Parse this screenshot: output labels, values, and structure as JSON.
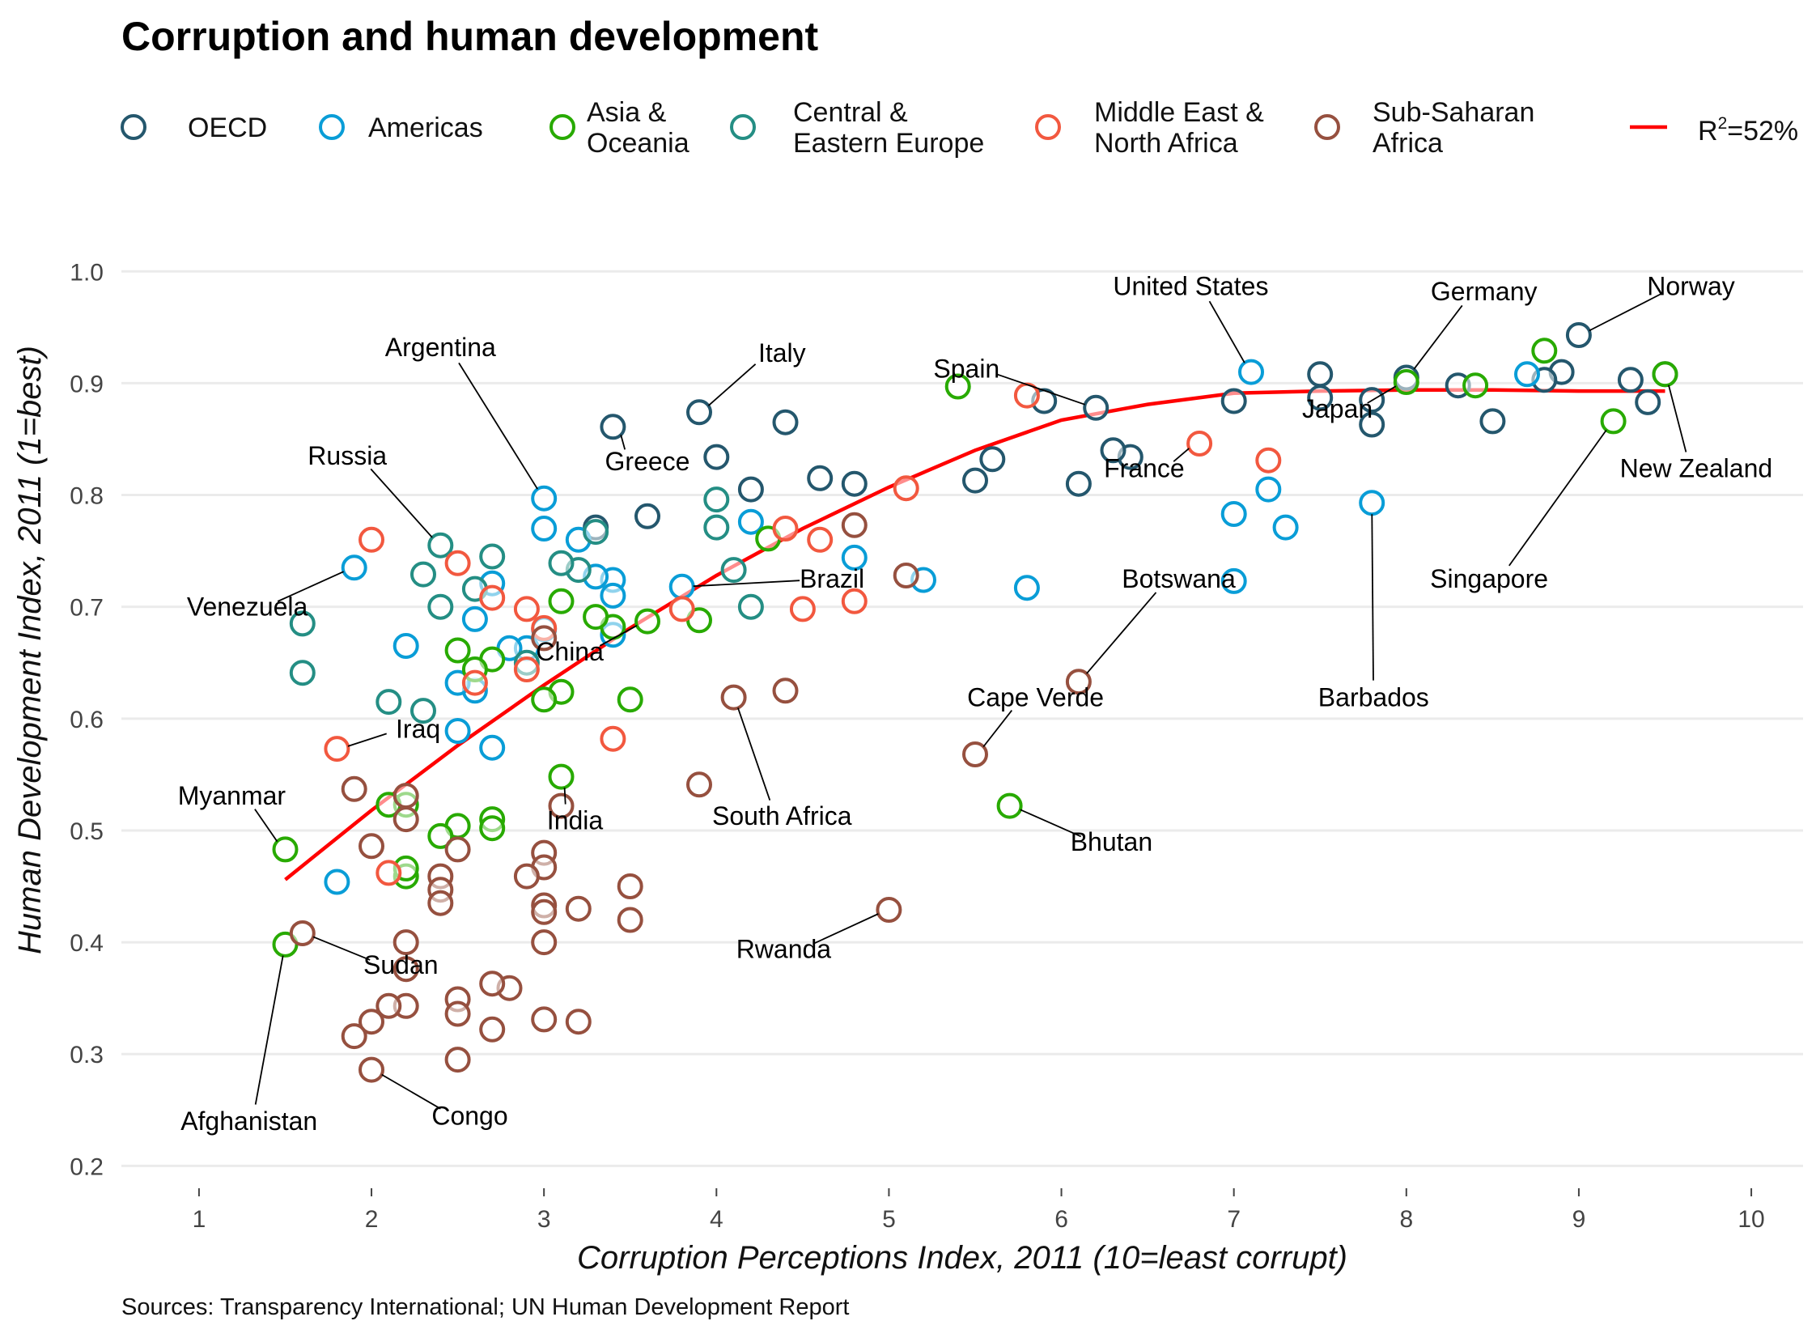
{
  "chart_data": {
    "type": "scatter",
    "title": "Corruption and human development",
    "xlabel": "Corruption Perceptions Index, 2011 (10=least corrupt)",
    "ylabel": "Human Development Index, 2011 (1=best)",
    "caption": "Sources: Transparency International; UN Human Development Report",
    "xlim": [
      0.55,
      10.3
    ],
    "ylim": [
      0.18,
      1.04
    ],
    "x_ticks": [
      1,
      2,
      3,
      4,
      5,
      6,
      7,
      8,
      9,
      10
    ],
    "x_tick_labels": [
      "1",
      "2",
      "3",
      "4",
      "5",
      "6",
      "7",
      "8",
      "9",
      "10"
    ],
    "y_ticks": [
      0.2,
      0.3,
      0.4,
      0.5,
      0.6,
      0.7,
      0.8,
      0.9,
      1.0
    ],
    "y_tick_labels": [
      "0.2",
      "0.3",
      "0.4",
      "0.5",
      "0.6",
      "0.7",
      "0.8",
      "0.9",
      "1.0"
    ],
    "grid": "horizontal",
    "legend_position": "top",
    "series": [
      {
        "name": "OECD",
        "label_lines": [
          "OECD"
        ],
        "color": "#24576D",
        "points": [
          [
            9.5,
            0.908
          ],
          [
            9.4,
            0.883
          ],
          [
            9.3,
            0.903
          ],
          [
            9.0,
            0.943
          ],
          [
            8.9,
            0.91
          ],
          [
            8.8,
            0.903
          ],
          [
            8.5,
            0.866
          ],
          [
            8.3,
            0.898
          ],
          [
            8.0,
            0.905
          ],
          [
            7.8,
            0.863
          ],
          [
            7.8,
            0.885
          ],
          [
            7.5,
            0.908
          ],
          [
            7.5,
            0.887
          ],
          [
            7.0,
            0.884
          ],
          [
            6.4,
            0.834
          ],
          [
            6.3,
            0.84
          ],
          [
            6.2,
            0.878
          ],
          [
            6.1,
            0.81
          ],
          [
            5.9,
            0.884
          ],
          [
            5.6,
            0.832
          ],
          [
            5.5,
            0.813
          ],
          [
            4.8,
            0.81
          ],
          [
            4.6,
            0.815
          ],
          [
            4.4,
            0.865
          ],
          [
            4.2,
            0.805
          ],
          [
            4.0,
            0.834
          ],
          [
            3.9,
            0.874
          ],
          [
            3.6,
            0.781
          ],
          [
            3.4,
            0.861
          ],
          [
            3.3,
            0.771
          ]
        ]
      },
      {
        "name": "Americas",
        "label_lines": [
          "Americas"
        ],
        "color": "#099DD7",
        "points": [
          [
            8.7,
            0.908
          ],
          [
            7.8,
            0.793
          ],
          [
            7.3,
            0.771
          ],
          [
            7.2,
            0.805
          ],
          [
            7.1,
            0.91
          ],
          [
            7.0,
            0.783
          ],
          [
            7.0,
            0.723
          ],
          [
            5.8,
            0.717
          ],
          [
            5.2,
            0.724
          ],
          [
            4.8,
            0.744
          ],
          [
            4.2,
            0.776
          ],
          [
            3.8,
            0.718
          ],
          [
            3.4,
            0.724
          ],
          [
            3.4,
            0.71
          ],
          [
            3.4,
            0.675
          ],
          [
            3.3,
            0.727
          ],
          [
            3.2,
            0.76
          ],
          [
            3.0,
            0.797
          ],
          [
            3.0,
            0.77
          ],
          [
            3.0,
            0.68
          ],
          [
            2.9,
            0.663
          ],
          [
            2.8,
            0.663
          ],
          [
            2.7,
            0.721
          ],
          [
            2.7,
            0.574
          ],
          [
            2.6,
            0.689
          ],
          [
            2.6,
            0.625
          ],
          [
            2.5,
            0.632
          ],
          [
            2.5,
            0.589
          ],
          [
            2.2,
            0.665
          ],
          [
            1.9,
            0.735
          ],
          [
            1.8,
            0.454
          ]
        ]
      },
      {
        "name": "Asia & Oceania",
        "label_lines": [
          "Asia &",
          "Oceania"
        ],
        "color": "#28AA00",
        "points": [
          [
            9.5,
            0.908
          ],
          [
            9.2,
            0.866
          ],
          [
            8.8,
            0.929
          ],
          [
            8.4,
            0.898
          ],
          [
            8.0,
            0.901
          ],
          [
            5.7,
            0.522
          ],
          [
            5.4,
            0.897
          ],
          [
            4.3,
            0.761
          ],
          [
            3.9,
            0.688
          ],
          [
            3.6,
            0.687
          ],
          [
            3.5,
            0.617
          ],
          [
            3.4,
            0.682
          ],
          [
            3.3,
            0.691
          ],
          [
            3.1,
            0.705
          ],
          [
            3.1,
            0.624
          ],
          [
            3.1,
            0.548
          ],
          [
            3.0,
            0.617
          ],
          [
            2.7,
            0.653
          ],
          [
            2.7,
            0.51
          ],
          [
            2.7,
            0.502
          ],
          [
            2.6,
            0.644
          ],
          [
            2.5,
            0.661
          ],
          [
            2.5,
            0.504
          ],
          [
            2.4,
            0.495
          ],
          [
            2.2,
            0.523
          ],
          [
            2.2,
            0.459
          ],
          [
            2.2,
            0.466
          ],
          [
            2.1,
            0.523
          ],
          [
            1.5,
            0.483
          ],
          [
            1.5,
            0.398
          ]
        ]
      },
      {
        "name": "Central & Eastern Europe",
        "label_lines": [
          "Central &",
          "Eastern Europe"
        ],
        "color": "#248E84",
        "points": [
          [
            4.2,
            0.7
          ],
          [
            4.1,
            0.733
          ],
          [
            4.0,
            0.796
          ],
          [
            4.0,
            0.771
          ],
          [
            3.3,
            0.767
          ],
          [
            3.2,
            0.733
          ],
          [
            3.1,
            0.739
          ],
          [
            2.9,
            0.65
          ],
          [
            2.7,
            0.745
          ],
          [
            2.6,
            0.716
          ],
          [
            2.4,
            0.755
          ],
          [
            2.4,
            0.7
          ],
          [
            2.3,
            0.729
          ],
          [
            2.3,
            0.607
          ],
          [
            2.1,
            0.615
          ],
          [
            1.6,
            0.685
          ],
          [
            1.6,
            0.641
          ]
        ]
      },
      {
        "name": "Middle East & North Africa",
        "label_lines": [
          "Middle East &",
          "North Africa"
        ],
        "color": "#F2583F",
        "points": [
          [
            7.2,
            0.831
          ],
          [
            6.8,
            0.846
          ],
          [
            5.8,
            0.889
          ],
          [
            5.1,
            0.806
          ],
          [
            4.8,
            0.705
          ],
          [
            4.6,
            0.76
          ],
          [
            4.5,
            0.698
          ],
          [
            4.4,
            0.77
          ],
          [
            3.8,
            0.698
          ],
          [
            3.4,
            0.582
          ],
          [
            3.0,
            0.681
          ],
          [
            2.9,
            0.698
          ],
          [
            2.9,
            0.644
          ],
          [
            2.7,
            0.708
          ],
          [
            2.6,
            0.632
          ],
          [
            2.5,
            0.739
          ],
          [
            2.1,
            0.462
          ],
          [
            2.0,
            0.76
          ],
          [
            1.8,
            0.573
          ]
        ]
      },
      {
        "name": "Sub-Saharan Africa",
        "label_lines": [
          "Sub-Saharan",
          "Africa"
        ],
        "color": "#96503F",
        "points": [
          [
            6.1,
            0.633
          ],
          [
            5.5,
            0.568
          ],
          [
            5.0,
            0.429
          ],
          [
            4.8,
            0.773
          ],
          [
            5.1,
            0.728
          ],
          [
            4.4,
            0.625
          ],
          [
            4.1,
            0.619
          ],
          [
            3.9,
            0.541
          ],
          [
            3.5,
            0.45
          ],
          [
            3.5,
            0.42
          ],
          [
            3.2,
            0.43
          ],
          [
            3.2,
            0.329
          ],
          [
            3.1,
            0.522
          ],
          [
            3.0,
            0.48
          ],
          [
            3.0,
            0.467
          ],
          [
            3.0,
            0.433
          ],
          [
            3.0,
            0.427
          ],
          [
            3.0,
            0.4
          ],
          [
            3.0,
            0.331
          ],
          [
            3.0,
            0.672
          ],
          [
            2.9,
            0.459
          ],
          [
            2.8,
            0.359
          ],
          [
            2.7,
            0.363
          ],
          [
            2.7,
            0.322
          ],
          [
            2.5,
            0.483
          ],
          [
            2.5,
            0.349
          ],
          [
            2.5,
            0.336
          ],
          [
            2.5,
            0.295
          ],
          [
            2.4,
            0.459
          ],
          [
            2.4,
            0.447
          ],
          [
            2.4,
            0.435
          ],
          [
            2.2,
            0.531
          ],
          [
            2.2,
            0.51
          ],
          [
            2.2,
            0.4
          ],
          [
            2.2,
            0.376
          ],
          [
            2.2,
            0.343
          ],
          [
            2.1,
            0.343
          ],
          [
            2.0,
            0.486
          ],
          [
            2.0,
            0.329
          ],
          [
            2.0,
            0.286
          ],
          [
            1.9,
            0.537
          ],
          [
            1.9,
            0.316
          ],
          [
            1.6,
            0.408
          ]
        ]
      }
    ],
    "trend_line": {
      "name": "R²=52%",
      "label_base": "R",
      "label_sup": "2",
      "label_rest": "=52%",
      "color": "#FF0000",
      "x": [
        1.5,
        2.0,
        2.5,
        3.0,
        3.5,
        4.0,
        4.5,
        5.0,
        5.5,
        6.0,
        6.5,
        7.0,
        7.5,
        8.0,
        8.5,
        9.0,
        9.5
      ],
      "y": [
        0.456,
        0.518,
        0.576,
        0.63,
        0.681,
        0.728,
        0.77,
        0.807,
        0.84,
        0.867,
        0.881,
        0.891,
        0.893,
        0.894,
        0.894,
        0.893,
        0.893
      ]
    },
    "annotations": [
      {
        "label": "Norway",
        "point": [
          9.0,
          0.943
        ],
        "text_at": [
          9.65,
          0.979
        ],
        "anchor": "middle"
      },
      {
        "label": "Germany",
        "point": [
          8.0,
          0.905
        ],
        "text_at": [
          8.45,
          0.974
        ],
        "anchor": "middle"
      },
      {
        "label": "United States",
        "point": [
          7.1,
          0.91
        ],
        "text_at": [
          6.75,
          0.979
        ],
        "anchor": "middle"
      },
      {
        "label": "Spain",
        "point": [
          6.2,
          0.878
        ],
        "text_at": [
          5.45,
          0.905
        ],
        "anchor": "middle"
      },
      {
        "label": "Italy",
        "point": [
          3.9,
          0.874
        ],
        "text_at": [
          4.38,
          0.919
        ],
        "anchor": "middle"
      },
      {
        "label": "Argentina",
        "point": [
          3.0,
          0.797
        ],
        "text_at": [
          2.4,
          0.924
        ],
        "anchor": "middle"
      },
      {
        "label": "Greece",
        "point": [
          3.4,
          0.861
        ],
        "text_at": [
          3.6,
          0.822
        ],
        "anchor": "middle"
      },
      {
        "label": "Russia",
        "point": [
          2.4,
          0.755
        ],
        "text_at": [
          1.86,
          0.827
        ],
        "anchor": "middle"
      },
      {
        "label": "Japan",
        "point": [
          8.0,
          0.901
        ],
        "text_at": [
          7.6,
          0.869
        ],
        "anchor": "middle"
      },
      {
        "label": "France",
        "point": [
          6.8,
          0.846
        ],
        "text_at": [
          6.48,
          0.816
        ],
        "anchor": "middle"
      },
      {
        "label": "New Zealand",
        "point": [
          9.5,
          0.908
        ],
        "text_at": [
          9.68,
          0.816
        ],
        "anchor": "middle"
      },
      {
        "label": "Brazil",
        "point": [
          3.8,
          0.718
        ],
        "text_at": [
          4.67,
          0.717
        ],
        "anchor": "middle"
      },
      {
        "label": "Botswana",
        "point": [
          6.1,
          0.633
        ],
        "text_at": [
          6.68,
          0.717
        ],
        "anchor": "middle"
      },
      {
        "label": "Singapore",
        "point": [
          9.2,
          0.866
        ],
        "text_at": [
          8.48,
          0.717
        ],
        "anchor": "middle"
      },
      {
        "label": "Venezuela",
        "point": [
          1.9,
          0.735
        ],
        "text_at": [
          1.28,
          0.692
        ],
        "anchor": "middle"
      },
      {
        "label": "China",
        "point": [
          3.6,
          0.687
        ],
        "text_at": [
          3.15,
          0.652
        ],
        "anchor": "middle"
      },
      {
        "label": "Cape Verde",
        "point": [
          5.5,
          0.568
        ],
        "text_at": [
          5.85,
          0.611
        ],
        "anchor": "middle"
      },
      {
        "label": "Barbados",
        "point": [
          7.8,
          0.793
        ],
        "text_at": [
          7.81,
          0.611
        ],
        "anchor": "middle"
      },
      {
        "label": "Iraq",
        "point": [
          1.8,
          0.573
        ],
        "text_at": [
          2.27,
          0.583
        ],
        "anchor": "middle"
      },
      {
        "label": "Myanmar",
        "point": [
          1.5,
          0.483
        ],
        "text_at": [
          1.19,
          0.523
        ],
        "anchor": "middle"
      },
      {
        "label": "South Africa",
        "point": [
          4.1,
          0.619
        ],
        "text_at": [
          4.38,
          0.505
        ],
        "anchor": "middle"
      },
      {
        "label": "India",
        "point": [
          3.1,
          0.548
        ],
        "text_at": [
          3.18,
          0.501
        ],
        "anchor": "middle"
      },
      {
        "label": "Bhutan",
        "point": [
          5.7,
          0.522
        ],
        "text_at": [
          6.29,
          0.482
        ],
        "anchor": "middle"
      },
      {
        "label": "Rwanda",
        "point": [
          5.0,
          0.429
        ],
        "text_at": [
          4.39,
          0.386
        ],
        "anchor": "middle"
      },
      {
        "label": "Sudan",
        "point": [
          1.6,
          0.408
        ],
        "text_at": [
          2.17,
          0.372
        ],
        "anchor": "middle"
      },
      {
        "label": "Afghanistan",
        "point": [
          1.5,
          0.398
        ],
        "text_at": [
          1.29,
          0.232
        ],
        "anchor": "middle"
      },
      {
        "label": "Congo",
        "point": [
          2.0,
          0.286
        ],
        "text_at": [
          2.57,
          0.237
        ],
        "anchor": "middle"
      }
    ]
  }
}
